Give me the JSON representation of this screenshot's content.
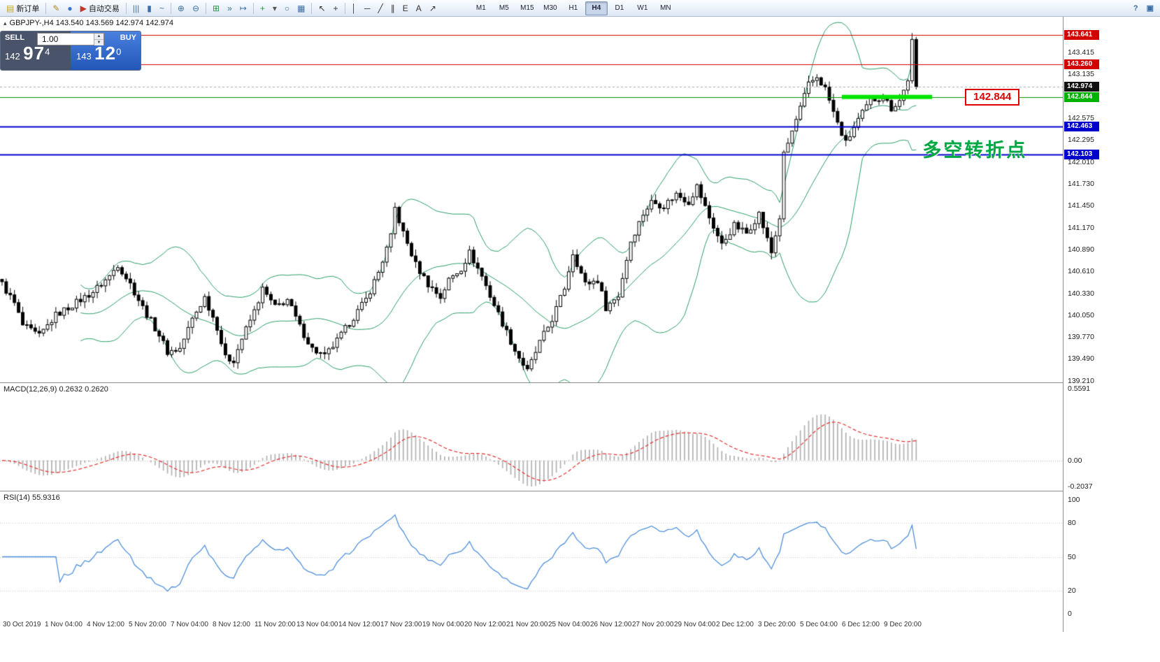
{
  "toolbar": {
    "items": [
      {
        "name": "new-order-button",
        "glyph": "▤",
        "color": "#c9a227",
        "label": "新订单"
      },
      {
        "name": "sep"
      },
      {
        "name": "styler-button",
        "glyph": "✎",
        "color": "#b08820"
      },
      {
        "name": "market-info-button",
        "glyph": "●",
        "color": "#3b74c9"
      },
      {
        "name": "autotrading-button",
        "glyph": "▶",
        "color": "#c0392b",
        "label": "自动交易"
      },
      {
        "name": "sep"
      },
      {
        "name": "bar-chart-button",
        "glyph": "|||",
        "color": "#3a6ea5"
      },
      {
        "name": "candlestick-chart-button",
        "glyph": "▮",
        "color": "#3a6ea5"
      },
      {
        "name": "line-chart-button",
        "glyph": "~",
        "color": "#3a6ea5"
      },
      {
        "name": "sep"
      },
      {
        "name": "zoom-in-button",
        "glyph": "⊕",
        "color": "#3a6ea5"
      },
      {
        "name": "zoom-out-button",
        "glyph": "⊖",
        "color": "#3a6ea5"
      },
      {
        "name": "sep"
      },
      {
        "name": "tile-windows-button",
        "glyph": "⊞",
        "color": "#2f8f46"
      },
      {
        "name": "auto-scroll-button",
        "glyph": "»",
        "color": "#3a6ea5"
      },
      {
        "name": "chart-shift-button",
        "glyph": "↦",
        "color": "#3a6ea5"
      },
      {
        "name": "sep"
      },
      {
        "name": "indicators-button",
        "glyph": "+",
        "color": "#1f9e35"
      },
      {
        "name": "indicators-menu-button",
        "glyph": "▾",
        "color": "#555555"
      },
      {
        "name": "periods-menu-button",
        "glyph": "○",
        "color": "#3a6ea5"
      },
      {
        "name": "templates-button",
        "glyph": "▦",
        "color": "#3a6ea5"
      },
      {
        "name": "sep"
      },
      {
        "name": "cursor-button",
        "glyph": "↖",
        "color": "#333333"
      },
      {
        "name": "crosshair-button",
        "glyph": "+",
        "color": "#333333"
      },
      {
        "name": "sep"
      },
      {
        "name": "vertical-line-button",
        "glyph": "│",
        "color": "#333333"
      },
      {
        "name": "horizontal-line-button",
        "glyph": "─",
        "color": "#333333"
      },
      {
        "name": "trendline-button",
        "glyph": "╱",
        "color": "#333333"
      },
      {
        "name": "channel-button",
        "glyph": "∥",
        "color": "#333333"
      },
      {
        "name": "fibonacci-button",
        "glyph": "E",
        "color": "#333333"
      },
      {
        "name": "text-button",
        "glyph": "A",
        "color": "#333333"
      },
      {
        "name": "arrows-button",
        "glyph": "↗",
        "color": "#333333"
      }
    ],
    "timeframes": [
      "M1",
      "M5",
      "M15",
      "M30",
      "H1",
      "H4",
      "D1",
      "W1",
      "MN"
    ],
    "active_timeframe": "H4",
    "right_items": [
      {
        "name": "help-button",
        "glyph": "?",
        "color": "#3a6ea5"
      },
      {
        "name": "window-list-button",
        "glyph": "▣",
        "color": "#3a6ea5"
      }
    ]
  },
  "oneclick": {
    "collapse_glyph": "▴",
    "sell_label": "SELL",
    "buy_label": "BUY",
    "lot_value": "1.00",
    "spin_up_glyph": "▲",
    "spin_down_glyph": "▼",
    "sell_price_head": "142",
    "sell_price_big": "97",
    "sell_price_sup": "4",
    "buy_price_head": "143",
    "buy_price_big": "12",
    "buy_price_sup": "0"
  },
  "chart_data": {
    "type": "candlestick",
    "symbol": "GBPJPY-",
    "timeframe": "H4",
    "symbol_info": "GBPJPY-,H4  143.540 143.569 142.974 142.974",
    "current_bar": {
      "open": 143.54,
      "high": 143.569,
      "low": 142.974,
      "close": 142.974
    },
    "axis": {
      "view_max": 143.87,
      "view_min": 139.19,
      "ticks": [
        "143.415",
        "143.135",
        "142.575",
        "142.295",
        "142.010",
        "141.730",
        "141.450",
        "141.170",
        "140.890",
        "140.610",
        "140.330",
        "140.050",
        "139.770",
        "139.490",
        "139.210"
      ]
    },
    "tags": [
      {
        "name": "price-tag-resistance-high",
        "text": "143.641",
        "bg": "#d40000"
      },
      {
        "name": "price-tag-resistance-low",
        "text": "143.260",
        "bg": "#d40000"
      },
      {
        "name": "price-tag-bid",
        "text": "142.974",
        "bg": "#111111"
      },
      {
        "name": "price-tag-pivot",
        "text": "142.844",
        "bg": "#00b200"
      },
      {
        "name": "price-tag-support-high",
        "text": "142.463",
        "bg": "#0000cd"
      },
      {
        "name": "price-tag-support-low",
        "text": "142.103",
        "bg": "#0000cd"
      }
    ],
    "hlines": [
      {
        "name": "resistance-line-high",
        "price": 143.641,
        "color": "#cc0000",
        "width": 1.2,
        "dash": []
      },
      {
        "name": "resistance-line-low",
        "price": 143.26,
        "color": "#cc0000",
        "width": 1.2,
        "dash": []
      },
      {
        "name": "bid-line",
        "price": 142.974,
        "color": "#aaaaaa",
        "width": 1,
        "dash": [
          3,
          3
        ]
      },
      {
        "name": "pivot-line",
        "price": 142.844,
        "color": "#009000",
        "width": 1.2,
        "dash": []
      },
      {
        "name": "support-line-high",
        "price": 142.463,
        "color": "#0000cc",
        "width": 2,
        "dash": []
      },
      {
        "name": "support-line-low",
        "price": 142.103,
        "color": "#0000cc",
        "width": 2,
        "dash": []
      }
    ],
    "green_segment": {
      "price": 142.844,
      "x0_frac": 0.792,
      "x1_frac": 0.877,
      "thickness": 6,
      "color": "#00e400"
    },
    "annotations": {
      "price_label": {
        "text": "142.844",
        "x_frac": 0.908,
        "price": 142.844,
        "color": "#dd0000"
      },
      "cn_label": {
        "text": "多空转折点",
        "x_frac": 0.868,
        "price": 142.3,
        "color": "#00a843"
      }
    },
    "candles": {
      "count": 222,
      "x_extent_frac": 0.864,
      "noise": 0.045,
      "wick": 0.085,
      "anchors": [
        [
          0,
          140.45
        ],
        [
          3,
          140.2
        ],
        [
          5,
          139.92
        ],
        [
          9,
          139.78
        ],
        [
          13,
          140.05
        ],
        [
          17,
          140.18
        ],
        [
          22,
          140.35
        ],
        [
          26,
          140.55
        ],
        [
          28,
          140.7
        ],
        [
          31,
          140.45
        ],
        [
          34,
          140.15
        ],
        [
          38,
          139.8
        ],
        [
          40,
          139.58
        ],
        [
          43,
          139.62
        ],
        [
          46,
          140.0
        ],
        [
          49,
          140.28
        ],
        [
          52,
          139.9
        ],
        [
          54,
          139.5
        ],
        [
          56,
          139.48
        ],
        [
          58,
          139.75
        ],
        [
          61,
          140.1
        ],
        [
          63,
          140.38
        ],
        [
          66,
          140.15
        ],
        [
          69,
          140.25
        ],
        [
          72,
          139.9
        ],
        [
          75,
          139.62
        ],
        [
          78,
          139.52
        ],
        [
          81,
          139.72
        ],
        [
          84,
          139.95
        ],
        [
          88,
          140.25
        ],
        [
          91,
          140.6
        ],
        [
          94,
          141.05
        ],
        [
          95,
          141.42
        ],
        [
          97,
          141.1
        ],
        [
          100,
          140.7
        ],
        [
          103,
          140.45
        ],
        [
          106,
          140.28
        ],
        [
          108,
          140.5
        ],
        [
          111,
          140.65
        ],
        [
          113,
          140.85
        ],
        [
          116,
          140.55
        ],
        [
          118,
          140.3
        ],
        [
          121,
          139.95
        ],
        [
          124,
          139.6
        ],
        [
          127,
          139.33
        ],
        [
          130,
          139.7
        ],
        [
          133,
          140.0
        ],
        [
          136,
          140.4
        ],
        [
          138,
          140.85
        ],
        [
          141,
          140.45
        ],
        [
          144,
          140.5
        ],
        [
          146,
          140.15
        ],
        [
          149,
          140.3
        ],
        [
          152,
          141.0
        ],
        [
          155,
          141.35
        ],
        [
          157,
          141.5
        ],
        [
          160,
          141.45
        ],
        [
          163,
          141.6
        ],
        [
          166,
          141.5
        ],
        [
          168,
          141.7
        ],
        [
          171,
          141.3
        ],
        [
          174,
          140.95
        ],
        [
          177,
          141.2
        ],
        [
          180,
          141.1
        ],
        [
          183,
          141.35
        ],
        [
          186,
          140.85
        ],
        [
          188,
          141.3
        ],
        [
          189,
          142.1
        ],
        [
          192,
          142.55
        ],
        [
          195,
          143.0
        ],
        [
          197,
          143.1
        ],
        [
          199,
          142.95
        ],
        [
          202,
          142.5
        ],
        [
          204,
          142.25
        ],
        [
          207,
          142.55
        ],
        [
          210,
          142.8
        ],
        [
          213,
          142.85
        ],
        [
          215,
          142.7
        ],
        [
          217,
          142.8
        ],
        [
          219,
          143.05
        ],
        [
          220,
          143.58
        ],
        [
          221,
          142.974
        ]
      ]
    },
    "bollinger": {
      "period": 20,
      "deviation": 2,
      "color": "#2a9d66"
    },
    "macd": {
      "label": "MACD(12,26,9) 0.2632 0.2620",
      "fast": 12,
      "slow": 26,
      "signal": 9,
      "axis_max": 0.5591,
      "axis_min": -0.2037,
      "ticks": [
        "0.5591",
        "0.00",
        "-0.2037"
      ],
      "hist_color": "#b4b4b4",
      "signal_color": "#e53030"
    },
    "rsi": {
      "label": "RSI(14) 55.9316",
      "period": 14,
      "levels": [
        80,
        50,
        20
      ],
      "ticks": [
        100,
        80,
        50,
        20,
        0
      ],
      "color": "#4f8fdc"
    },
    "time_axis": [
      "30 Oct 2019",
      "1 Nov 04:00",
      "4 Nov 12:00",
      "5 Nov 20:00",
      "7 Nov 04:00",
      "8 Nov 12:00",
      "11 Nov 20:00",
      "13 Nov 04:00",
      "14 Nov 12:00",
      "17 Nov 23:00",
      "19 Nov 04:00",
      "20 Nov 12:00",
      "21 Nov 20:00",
      "25 Nov 04:00",
      "26 Nov 12:00",
      "27 Nov 20:00",
      "29 Nov 04:00",
      "2 Dec 12:00",
      "3 Dec 20:00",
      "5 Dec 04:00",
      "6 Dec 12:00",
      "9 Dec 20:00"
    ]
  }
}
